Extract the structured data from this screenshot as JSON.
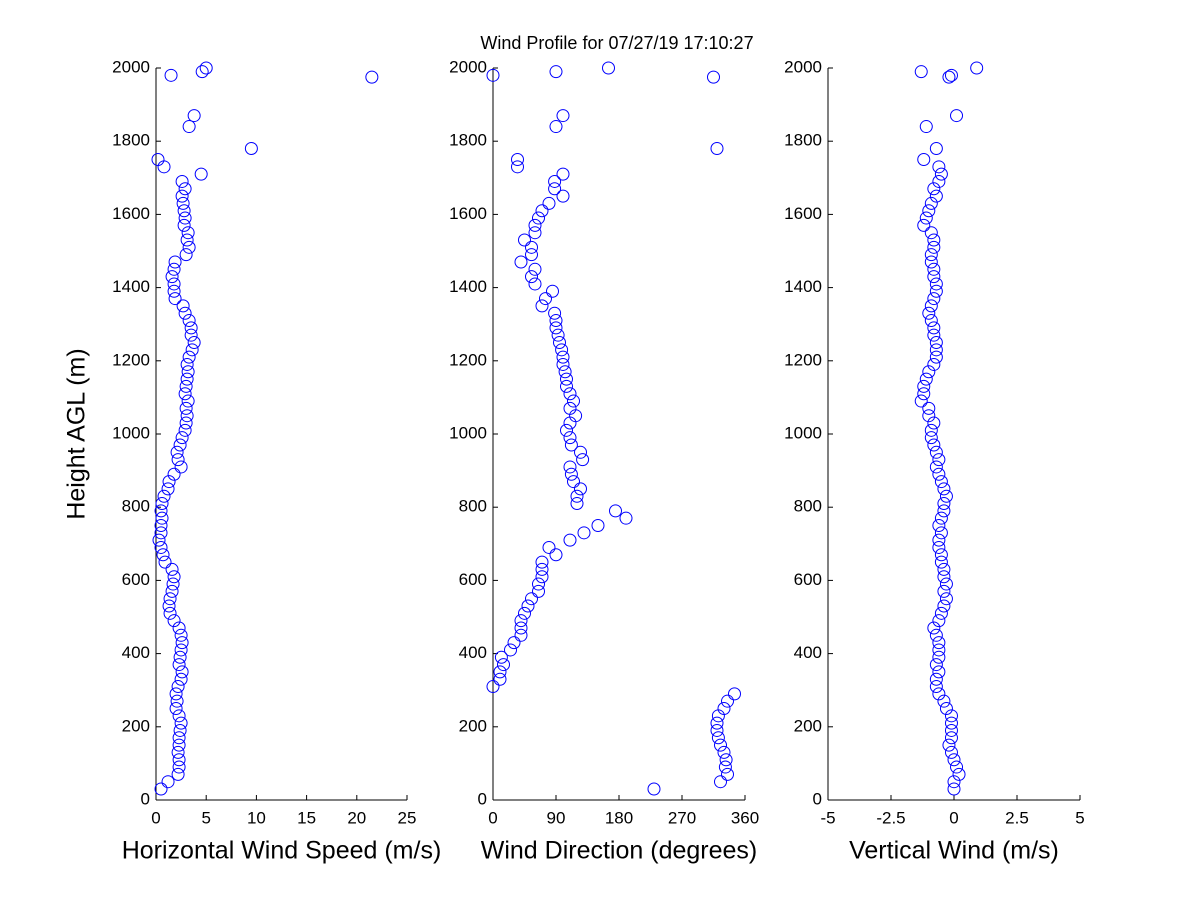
{
  "chart_data": [
    {
      "type": "scatter",
      "title": "Wind Profile for  07/27/19 17:10:27",
      "xlabel": "Horizontal Wind Speed (m/s)",
      "ylabel": "Height AGL (m)",
      "color": "#0000ff",
      "xlim": [
        0,
        25
      ],
      "xticks": [
        0,
        5,
        10,
        15,
        20,
        25
      ],
      "ylim": [
        0,
        2000
      ],
      "yticks": [
        0,
        200,
        400,
        600,
        800,
        1000,
        1200,
        1400,
        1600,
        1800,
        2000
      ],
      "x": [
        0.5,
        1.2,
        2.2,
        2.3,
        2.3,
        2.2,
        2.3,
        2.3,
        2.4,
        2.5,
        2.3,
        2.0,
        2.1,
        2.0,
        2.2,
        2.5,
        2.6,
        2.3,
        2.4,
        2.5,
        2.6,
        2.5,
        2.3,
        1.8,
        1.4,
        1.3,
        1.4,
        1.6,
        1.7,
        1.8,
        1.6,
        0.9,
        0.7,
        0.5,
        0.3,
        0.5,
        0.5,
        0.6,
        0.5,
        0.6,
        0.8,
        1.2,
        1.3,
        1.8,
        2.5,
        2.2,
        2.1,
        2.4,
        2.6,
        2.9,
        3.0,
        3.1,
        3.0,
        3.2,
        2.9,
        3.0,
        3.1,
        3.2,
        3.1,
        3.3,
        3.6,
        3.8,
        3.5,
        3.5,
        3.3,
        2.9,
        2.7,
        1.9,
        1.8,
        1.8,
        1.6,
        1.8,
        1.9,
        3.0,
        3.3,
        3.1,
        3.2,
        2.8,
        2.9,
        2.8,
        2.7,
        2.6,
        2.9,
        2.6,
        4.5,
        0.8,
        0.2,
        9.5,
        3.3,
        3.8,
        21.5,
        1.5,
        4.6,
        5.0
      ],
      "y": [
        30,
        50,
        70,
        90,
        110,
        130,
        150,
        170,
        190,
        210,
        230,
        250,
        270,
        290,
        310,
        330,
        350,
        370,
        390,
        410,
        430,
        450,
        470,
        490,
        510,
        530,
        550,
        570,
        590,
        610,
        630,
        650,
        670,
        690,
        710,
        730,
        750,
        770,
        790,
        810,
        830,
        850,
        870,
        890,
        910,
        930,
        950,
        970,
        990,
        1010,
        1030,
        1050,
        1070,
        1090,
        1110,
        1130,
        1150,
        1170,
        1190,
        1210,
        1230,
        1250,
        1270,
        1290,
        1310,
        1330,
        1350,
        1370,
        1390,
        1410,
        1430,
        1450,
        1470,
        1490,
        1510,
        1530,
        1550,
        1570,
        1590,
        1610,
        1630,
        1650,
        1670,
        1690,
        1710,
        1730,
        1750,
        1780,
        1840,
        1870,
        1975,
        1980,
        1990,
        2000
      ]
    },
    {
      "type": "scatter",
      "xlabel": "Wind Direction (degrees)",
      "color": "#0000ff",
      "xlim": [
        0,
        360
      ],
      "xticks": [
        0,
        90,
        180,
        270,
        360
      ],
      "ylim": [
        0,
        2000
      ],
      "yticks": [
        0,
        200,
        400,
        600,
        800,
        1000,
        1200,
        1400,
        1600,
        1800,
        2000
      ],
      "x": [
        230,
        325,
        335,
        332,
        333,
        330,
        325,
        322,
        320,
        320,
        322,
        330,
        335,
        345,
        0,
        10,
        10,
        15,
        12,
        25,
        30,
        40,
        40,
        40,
        45,
        50,
        55,
        65,
        65,
        70,
        70,
        70,
        90,
        80,
        110,
        130,
        150,
        190,
        175,
        120,
        120,
        125,
        115,
        112,
        110,
        128,
        125,
        112,
        110,
        105,
        110,
        118,
        110,
        115,
        110,
        105,
        105,
        103,
        100,
        100,
        98,
        95,
        93,
        90,
        90,
        88,
        70,
        75,
        85,
        60,
        55,
        60,
        40,
        55,
        55,
        45,
        60,
        60,
        65,
        70,
        80,
        100,
        88,
        88,
        100,
        35,
        35,
        320,
        90,
        100,
        315,
        0,
        90,
        165
      ],
      "y": [
        30,
        50,
        70,
        90,
        110,
        130,
        150,
        170,
        190,
        210,
        230,
        250,
        270,
        290,
        310,
        330,
        350,
        370,
        390,
        410,
        430,
        450,
        470,
        490,
        510,
        530,
        550,
        570,
        590,
        610,
        630,
        650,
        670,
        690,
        710,
        730,
        750,
        770,
        790,
        810,
        830,
        850,
        870,
        890,
        910,
        930,
        950,
        970,
        990,
        1010,
        1030,
        1050,
        1070,
        1090,
        1110,
        1130,
        1150,
        1170,
        1190,
        1210,
        1230,
        1250,
        1270,
        1290,
        1310,
        1330,
        1350,
        1370,
        1390,
        1410,
        1430,
        1450,
        1470,
        1490,
        1510,
        1530,
        1550,
        1570,
        1590,
        1610,
        1630,
        1650,
        1670,
        1690,
        1710,
        1730,
        1750,
        1780,
        1840,
        1870,
        1975,
        1980,
        1990,
        2000
      ]
    },
    {
      "type": "scatter",
      "xlabel": "Vertical Wind (m/s)",
      "color": "#0000ff",
      "xlim": [
        -5,
        5
      ],
      "xticks": [
        -5,
        -2.5,
        0,
        2.5,
        5
      ],
      "ylim": [
        0,
        2000
      ],
      "yticks": [
        0,
        200,
        400,
        600,
        800,
        1000,
        1200,
        1400,
        1600,
        1800,
        2000
      ],
      "x": [
        0,
        0,
        0.2,
        0.1,
        0,
        -0.1,
        -0.2,
        -0.1,
        -0.1,
        -0.1,
        -0.1,
        -0.3,
        -0.4,
        -0.6,
        -0.7,
        -0.7,
        -0.6,
        -0.7,
        -0.6,
        -0.6,
        -0.6,
        -0.7,
        -0.8,
        -0.6,
        -0.5,
        -0.4,
        -0.3,
        -0.4,
        -0.3,
        -0.4,
        -0.4,
        -0.5,
        -0.5,
        -0.6,
        -0.6,
        -0.5,
        -0.6,
        -0.5,
        -0.4,
        -0.4,
        -0.3,
        -0.4,
        -0.5,
        -0.6,
        -0.7,
        -0.6,
        -0.7,
        -0.8,
        -0.9,
        -0.9,
        -0.8,
        -1.0,
        -1.0,
        -1.3,
        -1.2,
        -1.2,
        -1.1,
        -1.0,
        -0.8,
        -0.7,
        -0.7,
        -0.7,
        -0.8,
        -0.8,
        -0.9,
        -1.0,
        -0.9,
        -0.8,
        -0.7,
        -0.7,
        -0.8,
        -0.8,
        -0.9,
        -0.9,
        -0.8,
        -0.8,
        -0.9,
        -1.2,
        -1.1,
        -1.0,
        -0.9,
        -0.7,
        -0.8,
        -0.6,
        -0.5,
        -0.6,
        -1.2,
        -0.7,
        -1.1,
        0.1,
        -0.2,
        -0.1,
        -1.3,
        0.9
      ],
      "y": [
        30,
        50,
        70,
        90,
        110,
        130,
        150,
        170,
        190,
        210,
        230,
        250,
        270,
        290,
        310,
        330,
        350,
        370,
        390,
        410,
        430,
        450,
        470,
        490,
        510,
        530,
        550,
        570,
        590,
        610,
        630,
        650,
        670,
        690,
        710,
        730,
        750,
        770,
        790,
        810,
        830,
        850,
        870,
        890,
        910,
        930,
        950,
        970,
        990,
        1010,
        1030,
        1050,
        1070,
        1090,
        1110,
        1130,
        1150,
        1170,
        1190,
        1210,
        1230,
        1250,
        1270,
        1290,
        1310,
        1330,
        1350,
        1370,
        1390,
        1410,
        1430,
        1450,
        1470,
        1490,
        1510,
        1530,
        1550,
        1570,
        1590,
        1610,
        1630,
        1650,
        1670,
        1690,
        1710,
        1730,
        1750,
        1780,
        1840,
        1870,
        1975,
        1980,
        1990,
        2000
      ]
    }
  ]
}
